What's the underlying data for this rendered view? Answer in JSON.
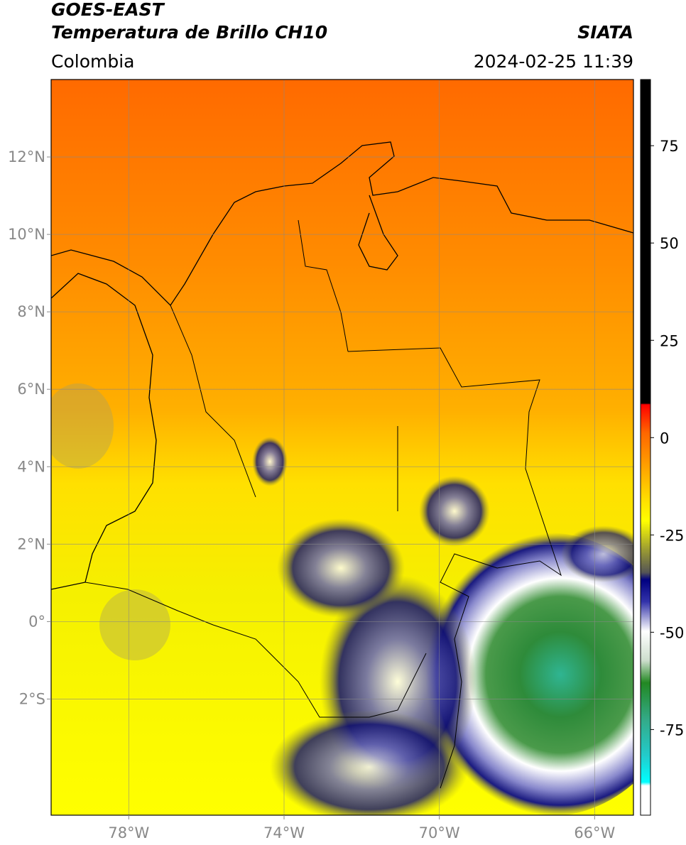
{
  "header": {
    "title": "GOES-EAST",
    "subtitle": "Temperatura de Brillo CH10",
    "region": "Colombia",
    "source": "SIATA",
    "timestamp": "2024-02-25 11:39"
  },
  "map": {
    "xlim": [
      -80,
      -65
    ],
    "ylim": [
      -5,
      14
    ],
    "xticks": [
      {
        "value": -78,
        "label": "78°W"
      },
      {
        "value": -74,
        "label": "74°W"
      },
      {
        "value": -70,
        "label": "70°W"
      },
      {
        "value": -66,
        "label": "66°W"
      }
    ],
    "yticks": [
      {
        "value": 12,
        "label": "12°N"
      },
      {
        "value": 10,
        "label": "10°N"
      },
      {
        "value": 8,
        "label": "8°N"
      },
      {
        "value": 6,
        "label": "6°N"
      },
      {
        "value": 4,
        "label": "4°N"
      },
      {
        "value": 2,
        "label": "2°N"
      },
      {
        "value": 0,
        "label": "0°"
      },
      {
        "value": -2,
        "label": "2°S"
      }
    ]
  },
  "colorbar": {
    "lim": [
      -97,
      92
    ],
    "ticks": [
      75,
      50,
      25,
      0,
      -25,
      -50,
      -75
    ]
  }
}
